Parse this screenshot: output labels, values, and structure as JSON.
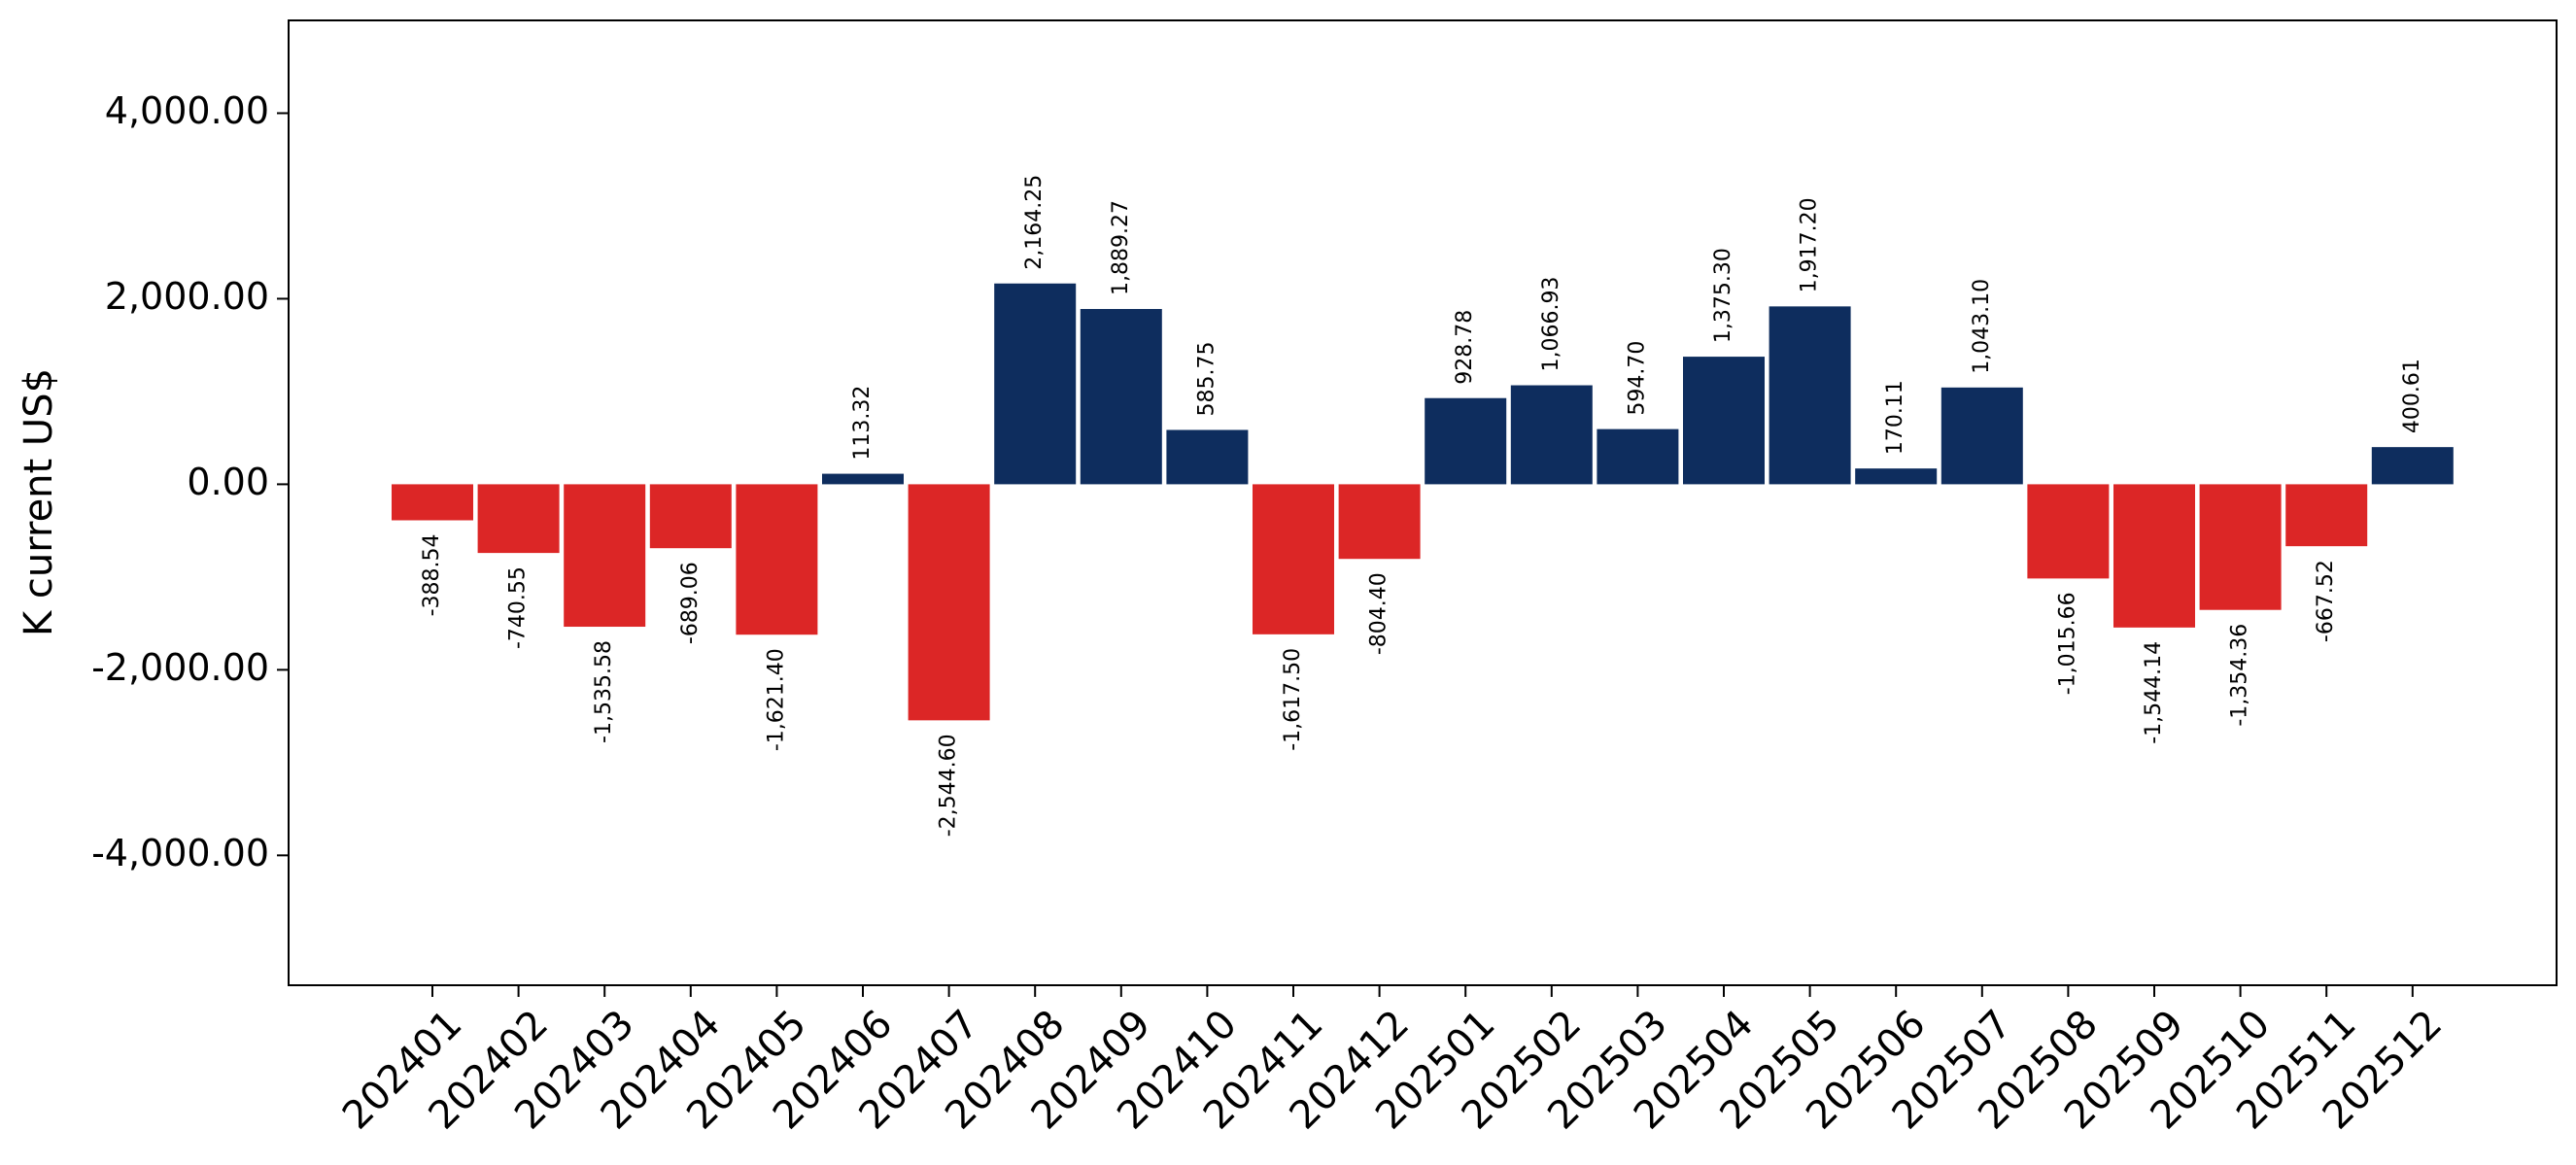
{
  "chart_data": {
    "type": "bar",
    "title": "",
    "xlabel": "",
    "ylabel": "K current US$",
    "ylim": [
      -5400,
      5000
    ],
    "yticks": [
      -4000,
      -2000,
      0,
      2000,
      4000
    ],
    "ytick_labels": [
      "-4,000.00",
      "-2,000.00",
      "0.00",
      "2,000.00",
      "4,000.00"
    ],
    "grid": false,
    "legend": "none",
    "colors": {
      "positive": "#0e2d5e",
      "negative": "#dc2626"
    },
    "categories": [
      "202401",
      "202402",
      "202403",
      "202404",
      "202405",
      "202406",
      "202407",
      "202408",
      "202409",
      "202410",
      "202411",
      "202412",
      "202501",
      "202502",
      "202503",
      "202504",
      "202505",
      "202506",
      "202507",
      "202508",
      "202509",
      "202510",
      "202511",
      "202512"
    ],
    "values": [
      -388.54,
      -740.55,
      -1535.58,
      -689.06,
      -1621.4,
      113.32,
      -2544.6,
      2164.25,
      1889.27,
      585.75,
      -1617.5,
      -804.4,
      928.78,
      1066.93,
      594.7,
      1375.3,
      1917.2,
      170.11,
      1043.1,
      -1015.66,
      -1544.14,
      -1354.36,
      -667.52,
      400.61
    ],
    "data_labels": [
      "-388.54",
      "-740.55",
      "-1,535.58",
      "-689.06",
      "-1,621.40",
      "113.32",
      "-2,544.60",
      "2,164.25",
      "1,889.27",
      "585.75",
      "-1,617.50",
      "-804.40",
      "928.78",
      "1,066.93",
      "594.70",
      "1,375.30",
      "1,917.20",
      "170.11",
      "1,043.10",
      "-1,015.66",
      "-1,544.14",
      "-1,354.36",
      "-667.52",
      "400.61"
    ]
  }
}
